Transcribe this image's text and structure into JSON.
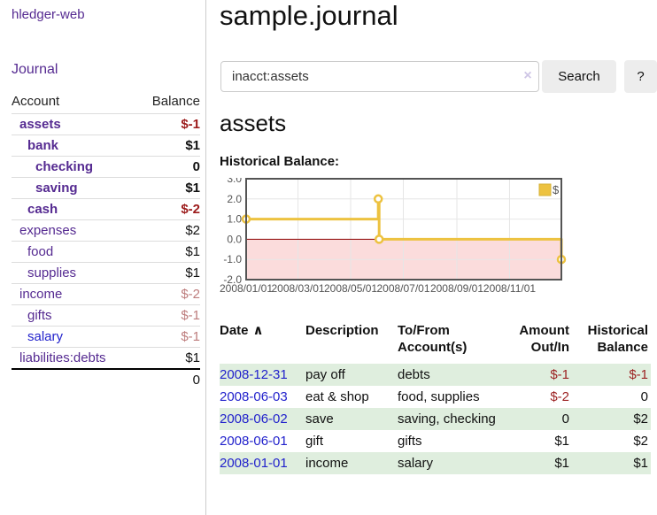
{
  "sidebar": {
    "app_title": "hledger-web",
    "nav_journal": "Journal",
    "header": {
      "account": "Account",
      "balance": "Balance"
    },
    "accounts": [
      {
        "name": "assets",
        "balance": "$-1",
        "depth": 1,
        "bold": true,
        "balance_class": "neg-strong",
        "link_blue": false
      },
      {
        "name": "bank",
        "balance": "$1",
        "depth": 2,
        "bold": true,
        "balance_class": "",
        "link_blue": false
      },
      {
        "name": "checking",
        "balance": "0",
        "depth": 3,
        "bold": true,
        "balance_class": "",
        "link_blue": false
      },
      {
        "name": "saving",
        "balance": "$1",
        "depth": 3,
        "bold": true,
        "balance_class": "",
        "link_blue": false
      },
      {
        "name": "cash",
        "balance": "$-2",
        "depth": 2,
        "bold": true,
        "balance_class": "neg-strong",
        "link_blue": false
      },
      {
        "name": "expenses",
        "balance": "$2",
        "depth": 1,
        "bold": false,
        "balance_class": "",
        "link_blue": false
      },
      {
        "name": "food",
        "balance": "$1",
        "depth": 2,
        "bold": false,
        "balance_class": "",
        "link_blue": false
      },
      {
        "name": "supplies",
        "balance": "$1",
        "depth": 2,
        "bold": false,
        "balance_class": "",
        "link_blue": false
      },
      {
        "name": "income",
        "balance": "$-2",
        "depth": 1,
        "bold": false,
        "balance_class": "neg-muted",
        "link_blue": false
      },
      {
        "name": "gifts",
        "balance": "$-1",
        "depth": 2,
        "bold": false,
        "balance_class": "neg-muted",
        "link_blue": false
      },
      {
        "name": "salary",
        "balance": "$-1",
        "depth": 2,
        "bold": false,
        "balance_class": "neg-muted",
        "link_blue": true
      },
      {
        "name": "liabilities:debts",
        "balance": "$1",
        "depth": 1,
        "bold": false,
        "balance_class": "",
        "link_blue": false
      }
    ],
    "total": "0"
  },
  "main": {
    "title": "sample.journal",
    "search": {
      "value": "inacct:assets",
      "clear_icon": "×",
      "button": "Search",
      "help": "?"
    },
    "account_heading": "assets",
    "chart_label": "Historical Balance:"
  },
  "chart_data": {
    "type": "line",
    "subtype": "step",
    "title": "Historical Balance:",
    "series": [
      {
        "name": "$",
        "color": "#edc240",
        "points": [
          [
            "2008-01-01",
            1
          ],
          [
            "2008-06-02",
            2
          ],
          [
            "2008-06-03",
            0
          ],
          [
            "2008-12-31",
            -1
          ]
        ]
      }
    ],
    "x_range": [
      "2008-01-01",
      "2008-12-31"
    ],
    "ylim": [
      -2,
      3
    ],
    "y_ticks": [
      "3.0",
      "2.0",
      "1.0",
      "0.0",
      "-1.0",
      "-2.0"
    ],
    "y_tick_values": [
      3,
      2,
      1,
      0,
      -1,
      -2
    ],
    "x_ticks": [
      "2008/01/01",
      "2008/03/01",
      "2008/05/01",
      "2008/07/01",
      "2008/09/01",
      "2008/11/01"
    ],
    "x_tick_dates": [
      "2008-01-01",
      "2008-03-01",
      "2008-05-01",
      "2008-07-01",
      "2008-09-01",
      "2008-11-01"
    ],
    "grid": true,
    "legend_position": "top-right",
    "legend_label": "$",
    "negative_region": {
      "from": 0,
      "to": -2
    }
  },
  "register": {
    "columns": [
      "Date",
      "Description",
      "To/From Account(s)",
      "Amount Out/In",
      "Historical Balance"
    ],
    "sort_icon": "∧",
    "rows": [
      {
        "date": "2008-12-31",
        "description": "pay off",
        "accounts": "debts",
        "amount": "$-1",
        "balance": "$-1",
        "amount_neg": true,
        "balance_neg": true
      },
      {
        "date": "2008-06-03",
        "description": "eat & shop",
        "accounts": "food, supplies",
        "amount": "$-2",
        "balance": "0",
        "amount_neg": true,
        "balance_neg": false
      },
      {
        "date": "2008-06-02",
        "description": "save",
        "accounts": "saving, checking",
        "amount": "0",
        "balance": "$2",
        "amount_neg": false,
        "balance_neg": false
      },
      {
        "date": "2008-06-01",
        "description": "gift",
        "accounts": "gifts",
        "amount": "$1",
        "balance": "$2",
        "amount_neg": false,
        "balance_neg": false
      },
      {
        "date": "2008-01-01",
        "description": "income",
        "accounts": "salary",
        "amount": "$1",
        "balance": "$1",
        "amount_neg": false,
        "balance_neg": false
      }
    ]
  },
  "colors": {
    "link_purple": "#552a91",
    "link_blue": "#2222cc",
    "negative_strong": "#9c1b1b",
    "negative_muted": "#bd7c7c",
    "row_green": "#dfeede",
    "chart_line": "#edc240",
    "chart_negative_fill": "#fbdcdc",
    "chart_zero_line": "#8b0000",
    "chart_border": "#545454",
    "chart_grid": "#e6e6e6"
  }
}
